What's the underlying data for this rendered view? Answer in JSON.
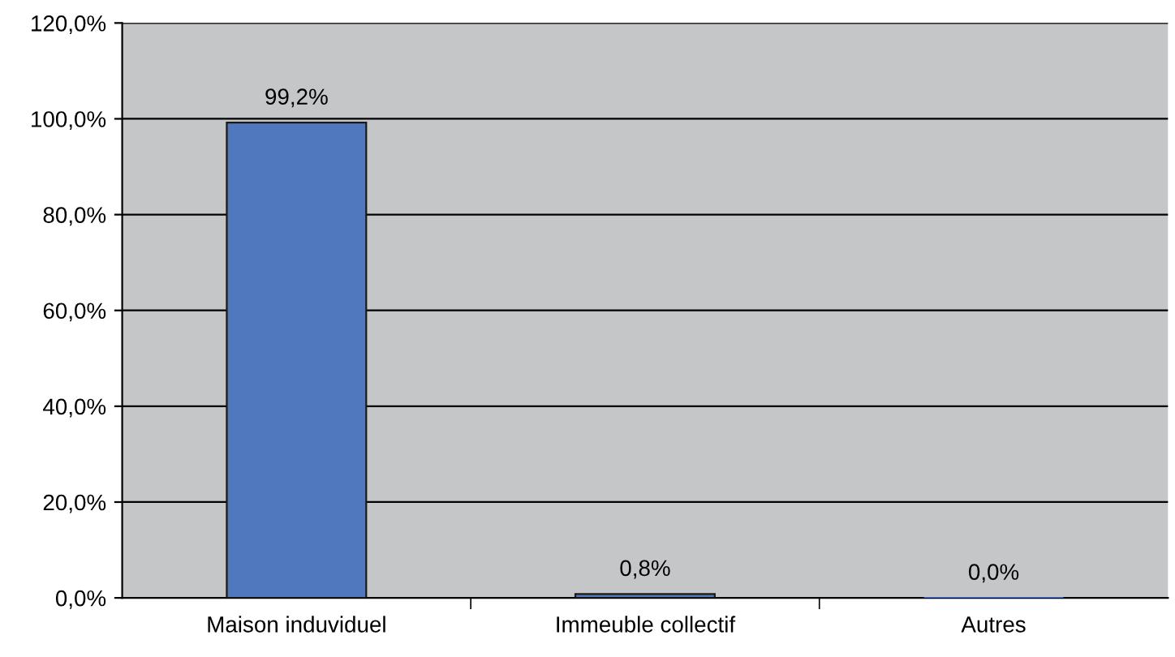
{
  "chart_data": {
    "type": "bar",
    "categories": [
      "Maison induviduel",
      "Immeuble collectif",
      "Autres"
    ],
    "values": [
      99.2,
      0.8,
      0.0
    ],
    "value_labels": [
      "99,2%",
      "0,8%",
      "0,0%"
    ],
    "color": "#4f78be",
    "ylim": [
      0,
      120
    ],
    "yticks": [
      {
        "value": 0,
        "label": "0,0%"
      },
      {
        "value": 20,
        "label": "20,0%"
      },
      {
        "value": 40,
        "label": "40,0%"
      },
      {
        "value": 60,
        "label": "60,0%"
      },
      {
        "value": 80,
        "label": "80,0%"
      },
      {
        "value": 100,
        "label": "100,0%"
      },
      {
        "value": 120,
        "label": "120,0%"
      }
    ],
    "grid": "y",
    "legend": false
  }
}
